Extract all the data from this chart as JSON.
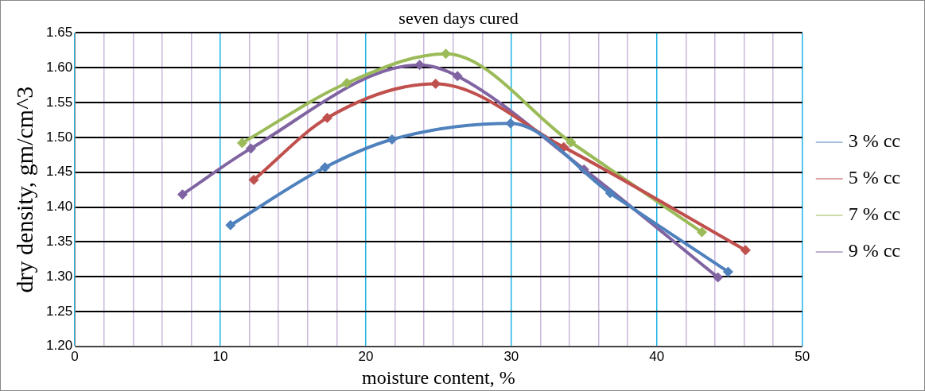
{
  "chart_data": {
    "type": "line",
    "title": "seven days cured",
    "xlabel": "moisture content, %",
    "ylabel": "dry density, gm/cm^3",
    "xlim": [
      0,
      50
    ],
    "xticks": [
      0,
      {
        "value": 2,
        "label": null
      },
      {
        "value": 4,
        "label": null
      },
      {
        "value": 6,
        "label": null
      },
      {
        "value": 8,
        "label": null
      },
      10,
      {
        "value": 12,
        "label": null
      },
      {
        "value": 14,
        "label": null
      },
      {
        "value": 16,
        "label": null
      },
      {
        "value": 18,
        "label": null
      },
      20,
      {
        "value": 22,
        "label": null
      },
      {
        "value": 24,
        "label": null
      },
      {
        "value": 26,
        "label": null
      },
      {
        "value": 28,
        "label": null
      },
      30,
      {
        "value": 32,
        "label": null
      },
      {
        "value": 34,
        "label": null
      },
      {
        "value": 36,
        "label": null
      },
      {
        "value": 38,
        "label": null
      },
      40,
      {
        "value": 42,
        "label": null
      },
      {
        "value": 44,
        "label": null
      },
      {
        "value": 46,
        "label": null
      },
      {
        "value": 48,
        "label": null
      },
      50
    ],
    "ylim": [
      1.2,
      1.65
    ],
    "yticks": [
      {
        "value": 1.2,
        "label": "1.20"
      },
      {
        "value": 1.25,
        "label": "1.25"
      },
      {
        "value": 1.3,
        "label": "1.30"
      },
      {
        "value": 1.35,
        "label": "1.35"
      },
      {
        "value": 1.4,
        "label": "1.40"
      },
      {
        "value": 1.45,
        "label": "1.45"
      },
      {
        "value": 1.5,
        "label": "1.50"
      },
      {
        "value": 1.55,
        "label": "1.55"
      },
      {
        "value": 1.6,
        "label": "1.60"
      },
      {
        "value": 1.65,
        "label": "1.65"
      }
    ],
    "grid": true,
    "legend": "right",
    "marker": "diamond",
    "line_style": "solid",
    "series": [
      {
        "name": "3 % cc",
        "color": "#4f81bd",
        "x": [
          10.7,
          17.2,
          21.8,
          29.95,
          36.8,
          44.9
        ],
        "values": [
          1.374,
          1.457,
          1.497,
          1.52,
          1.42,
          1.307
        ]
      },
      {
        "name": "5 % cc",
        "color": "#c0504d",
        "x": [
          12.3,
          17.35,
          24.8,
          33.6,
          46.1
        ],
        "values": [
          1.439,
          1.528,
          1.577,
          1.486,
          1.338
        ]
      },
      {
        "name": "7 % cc",
        "color": "#9bbb59",
        "x": [
          11.5,
          18.7,
          25.5,
          34.1,
          43.1
        ],
        "values": [
          1.492,
          1.578,
          1.62,
          1.493,
          1.364
        ]
      },
      {
        "name": "9 % cc",
        "color": "#8064a2",
        "x": [
          7.4,
          12.1,
          23.7,
          26.3,
          35.0,
          44.2
        ],
        "values": [
          1.418,
          1.484,
          1.604,
          1.588,
          1.454,
          1.299
        ]
      }
    ]
  }
}
